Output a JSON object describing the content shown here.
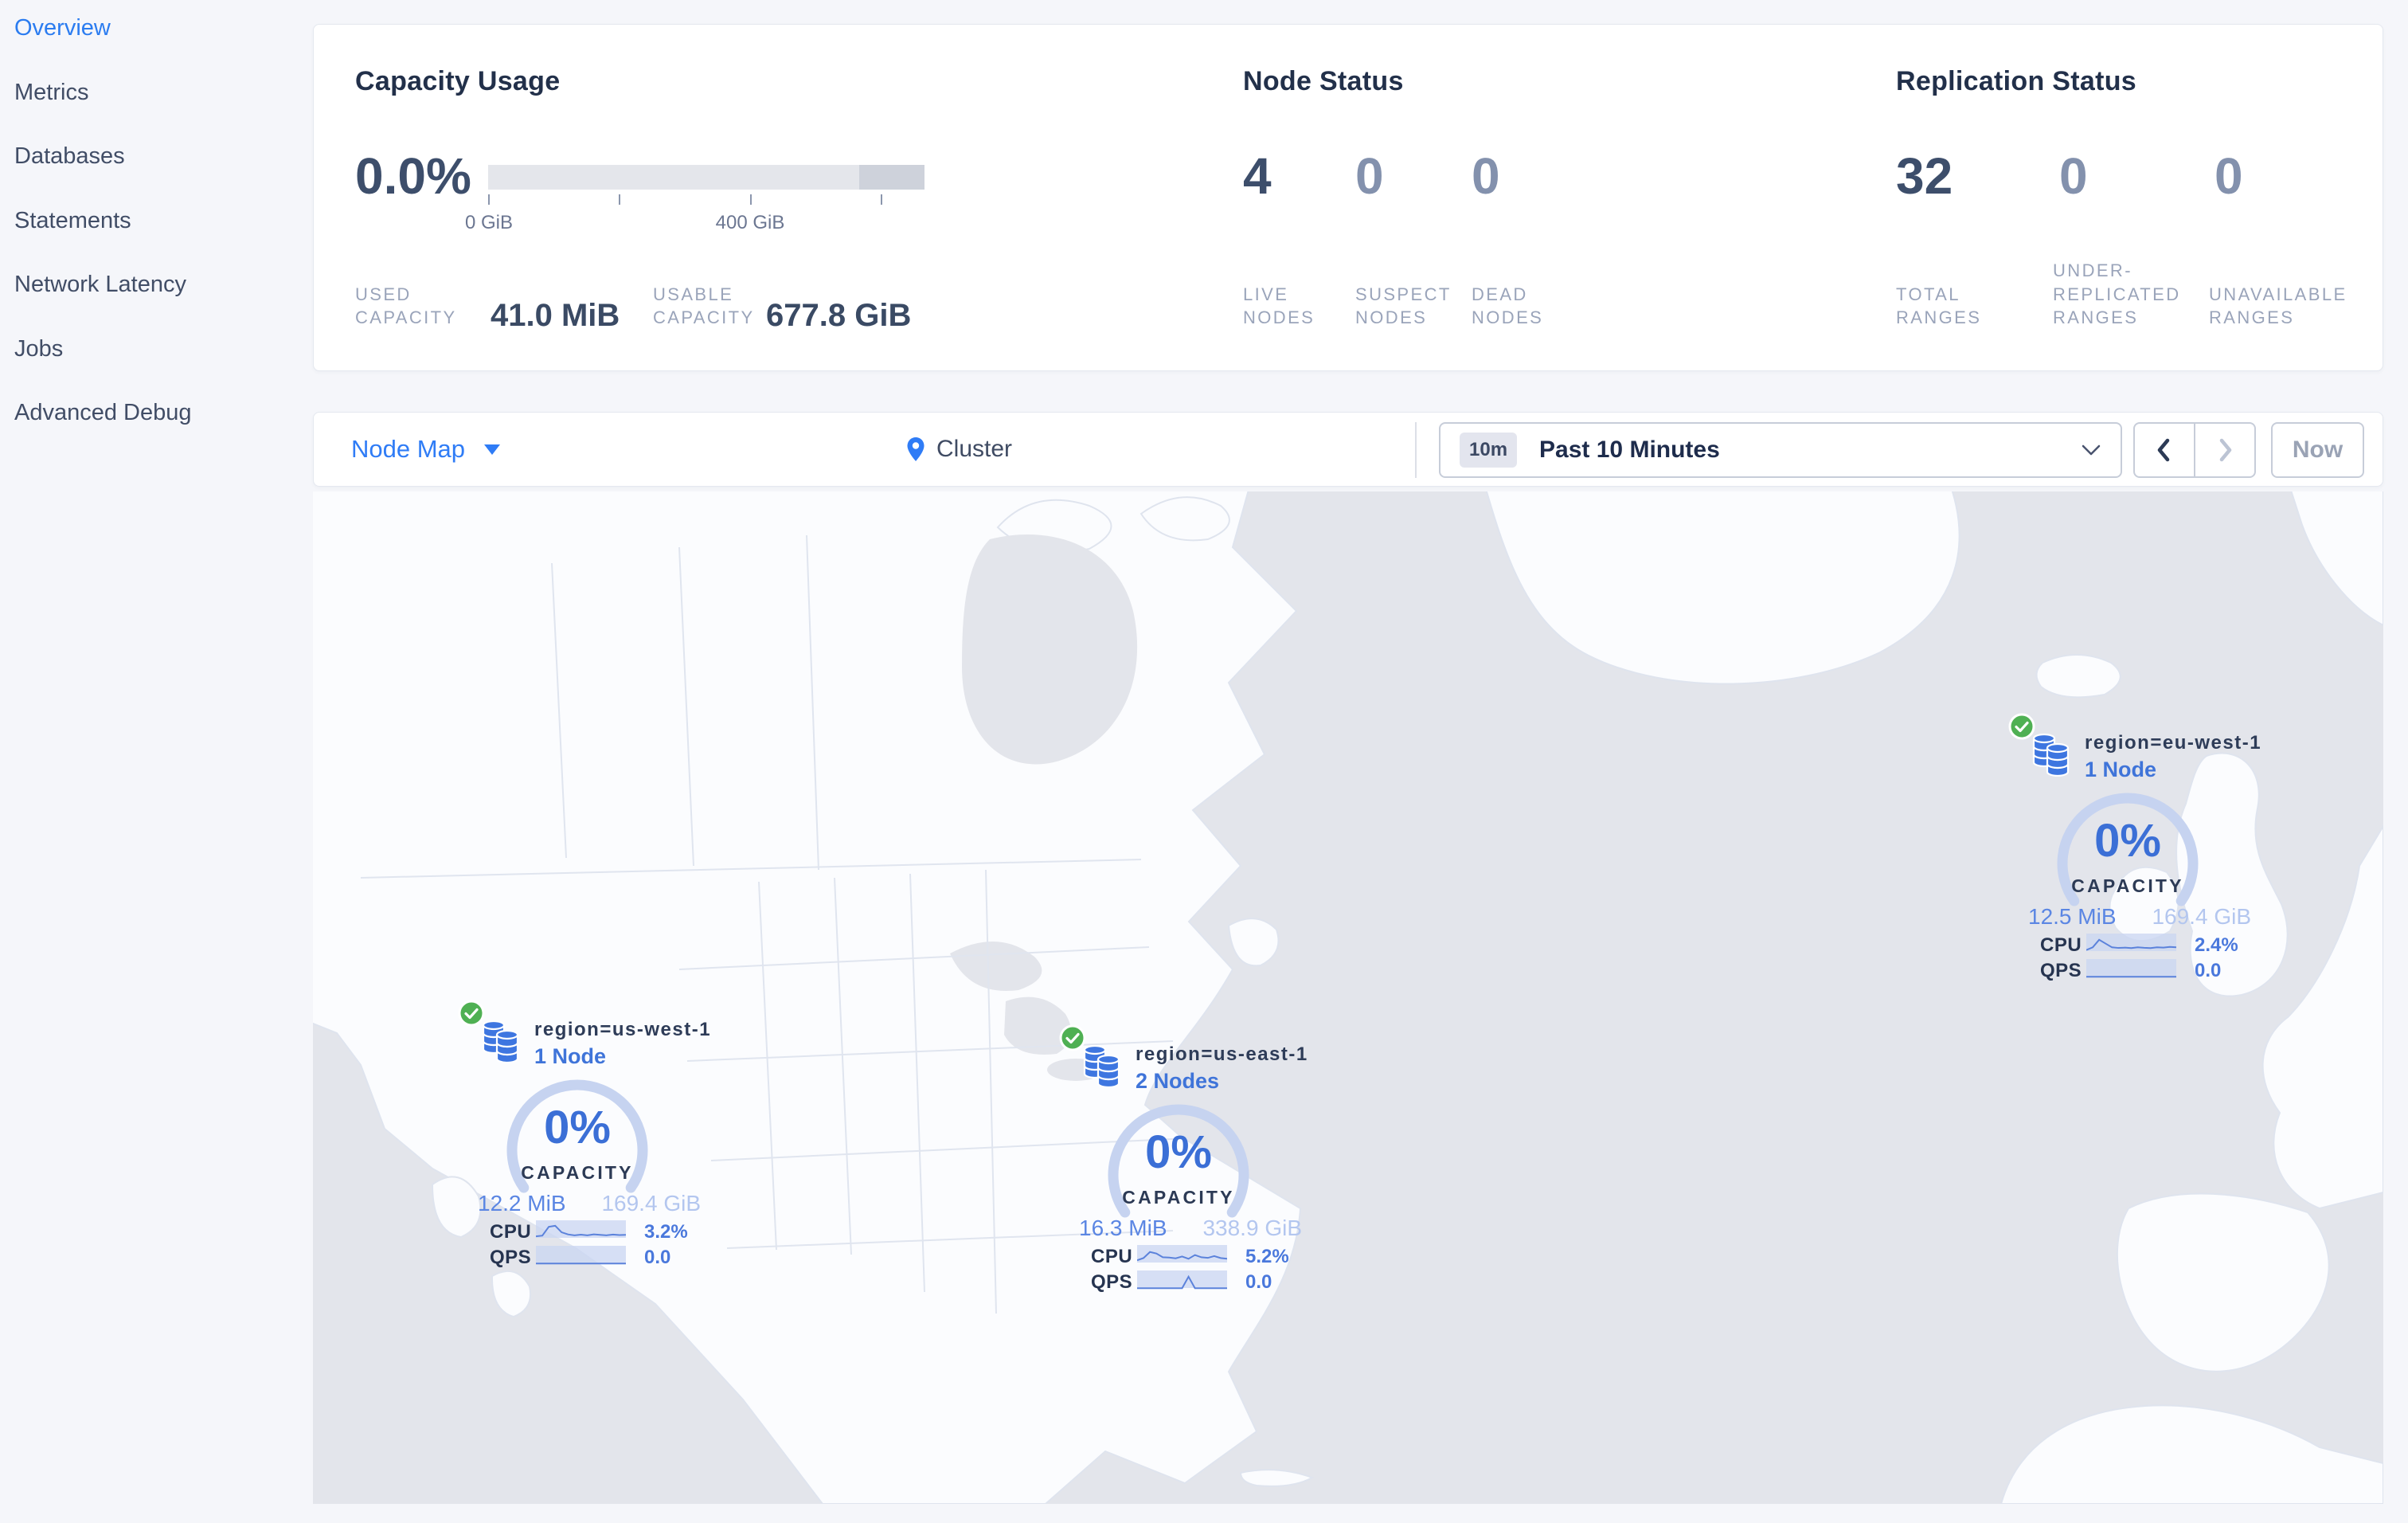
{
  "sidebar": {
    "items": [
      {
        "label": "Overview",
        "active": true
      },
      {
        "label": "Metrics",
        "active": false
      },
      {
        "label": "Databases",
        "active": false
      },
      {
        "label": "Statements",
        "active": false
      },
      {
        "label": "Network Latency",
        "active": false
      },
      {
        "label": "Jobs",
        "active": false
      },
      {
        "label": "Advanced Debug",
        "active": false
      }
    ]
  },
  "summary": {
    "capacity": {
      "title": "Capacity Usage",
      "percent": "0.0%",
      "tick_labels": [
        "0 GiB",
        "400 GiB"
      ],
      "used_label": "USED CAPACITY",
      "used_value": "41.0 MiB",
      "usable_label": "USABLE CAPACITY",
      "usable_value": "677.8 GiB"
    },
    "node_status": {
      "title": "Node Status",
      "live": {
        "value": "4",
        "label": "LIVE NODES"
      },
      "suspect": {
        "value": "0",
        "label": "SUSPECT NODES"
      },
      "dead": {
        "value": "0",
        "label": "DEAD NODES"
      }
    },
    "replication": {
      "title": "Replication Status",
      "total": {
        "value": "32",
        "label": "TOTAL RANGES"
      },
      "under": {
        "value": "0",
        "label": "UNDER-REPLICATED RANGES"
      },
      "unavailable": {
        "value": "0",
        "label": "UNAVAILABLE RANGES"
      }
    }
  },
  "toolbar": {
    "view_selector": "Node Map",
    "breadcrumb": "Cluster",
    "time_badge": "10m",
    "time_range": "Past 10 Minutes",
    "now_label": "Now"
  },
  "map": {
    "labels": {
      "capacity": "CAPACITY",
      "cpu": "CPU",
      "qps": "QPS"
    },
    "regions": [
      {
        "name": "region=us-west-1",
        "nodes": "1 Node",
        "percent": "0%",
        "used": "12.2 MiB",
        "usable": "169.4 GiB",
        "cpu": "3.2%",
        "qps": "0.0",
        "cpu_points": [
          0.15,
          0.2,
          0.78,
          0.85,
          0.42,
          0.28,
          0.22,
          0.26,
          0.22,
          0.28,
          0.25,
          0.22,
          0.27,
          0.24,
          0.25
        ],
        "qps_points": [
          0.04,
          0.04,
          0.04,
          0.04,
          0.04,
          0.04,
          0.04,
          0.04,
          0.04,
          0.04,
          0.04,
          0.04,
          0.04,
          0.04,
          0.04
        ]
      },
      {
        "name": "region=us-east-1",
        "nodes": "2 Nodes",
        "percent": "0%",
        "used": "16.3 MiB",
        "usable": "338.9 GiB",
        "cpu": "5.2%",
        "qps": "0.0",
        "cpu_points": [
          0.2,
          0.35,
          0.75,
          0.65,
          0.4,
          0.38,
          0.33,
          0.45,
          0.3,
          0.55,
          0.4,
          0.36,
          0.48,
          0.35,
          0.3
        ],
        "qps_points": [
          0.04,
          0.04,
          0.04,
          0.04,
          0.04,
          0.04,
          0.04,
          0.04,
          0.8,
          0.04,
          0.04,
          0.04,
          0.04,
          0.04,
          0.04
        ]
      },
      {
        "name": "region=eu-west-1",
        "nodes": "1 Node",
        "percent": "0%",
        "used": "12.5 MiB",
        "usable": "169.4 GiB",
        "cpu": "2.4%",
        "qps": "0.0",
        "cpu_points": [
          0.12,
          0.3,
          0.8,
          0.55,
          0.3,
          0.26,
          0.28,
          0.25,
          0.3,
          0.27,
          0.25,
          0.3,
          0.28,
          0.33,
          0.3
        ],
        "qps_points": [
          0.04,
          0.04,
          0.04,
          0.04,
          0.04,
          0.04,
          0.04,
          0.04,
          0.04,
          0.04,
          0.04,
          0.04,
          0.04,
          0.04,
          0.04
        ]
      }
    ]
  },
  "colors": {
    "nav_active": "#2b7cf0",
    "accent_blue": "#3f74d9",
    "gauge_blue": "#3b6fd6",
    "status_green": "#4fb053",
    "ocean": "#e3e5eb",
    "land": "#fbfcfe"
  }
}
